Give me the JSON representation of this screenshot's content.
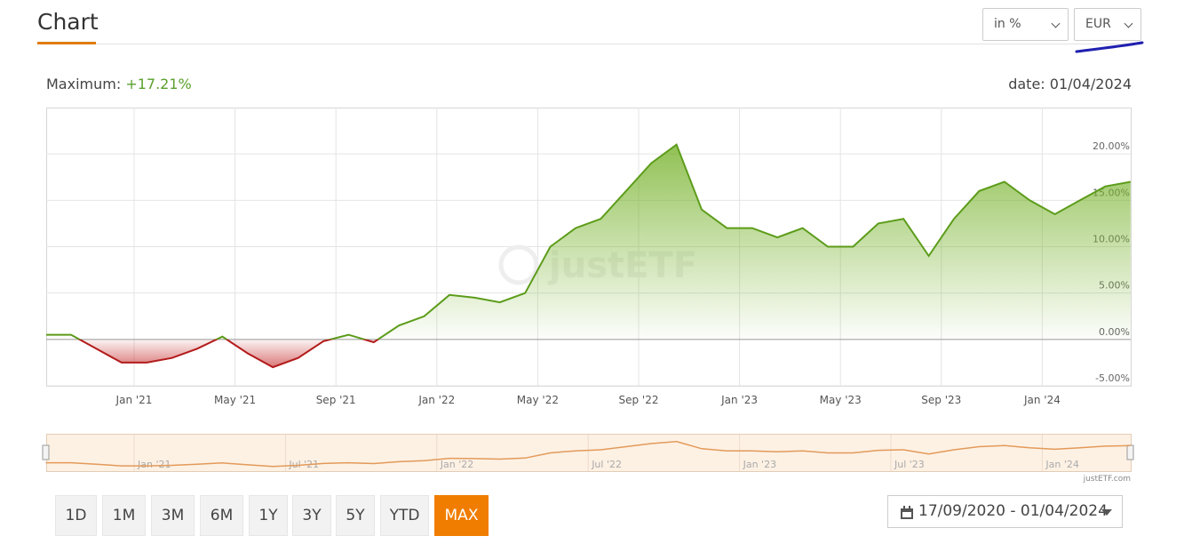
{
  "header": {
    "title": "Chart",
    "unit_select": "in %",
    "currency_select": "EUR"
  },
  "summary": {
    "maximum_label": "Maximum:",
    "maximum_value": "+17.21%",
    "date": "date: 01/04/2024"
  },
  "chart_data": {
    "type": "line",
    "categories": [
      null,
      null,
      null,
      null,
      "Jan '21",
      null,
      null,
      null,
      "May '21",
      null,
      null,
      null,
      "Sep '21",
      null,
      null,
      null,
      "Jan '22",
      null,
      null,
      null,
      "May '22",
      null,
      null,
      null,
      "Sep '22",
      null,
      null,
      null,
      "Jan '23",
      null,
      null,
      null,
      "May '23",
      null,
      null,
      null,
      "Sep '23",
      null,
      null,
      null,
      "Jan '24",
      null,
      null,
      null
    ],
    "values": [
      0.5,
      0.5,
      -1,
      -2.5,
      -2.5,
      -2,
      -1,
      0.3,
      -1.5,
      -3,
      -2,
      -0.2,
      0.5,
      -0.3,
      1.5,
      2.5,
      4.8,
      4.5,
      4,
      5,
      10,
      12,
      13,
      16,
      19,
      21,
      14,
      12,
      12,
      11,
      12,
      10,
      10,
      12.5,
      13,
      9,
      13,
      16,
      17,
      15,
      13.5,
      15,
      16.5,
      17
    ],
    "color": "#5c9c1a",
    "negative_color": "#b31b1b",
    "ylim": [
      -5,
      25
    ],
    "yticks": [
      {
        "value": -5,
        "label": "-5.00%"
      },
      {
        "value": 0,
        "label": "0.00%"
      },
      {
        "value": 5,
        "label": "5.00%"
      },
      {
        "value": 10,
        "label": "10.00%"
      },
      {
        "value": 15,
        "label": "15.00%"
      },
      {
        "value": 20,
        "label": "20.00%"
      }
    ],
    "grid": true,
    "watermark": "justETF"
  },
  "navigator": {
    "categories": [
      null,
      null,
      null,
      null,
      "Jan '21",
      null,
      null,
      null,
      null,
      null,
      "Jul '21",
      null,
      null,
      null,
      null,
      null,
      "Jan '22",
      null,
      null,
      null,
      null,
      null,
      "Jul '22",
      null,
      null,
      null,
      null,
      null,
      "Jan '23",
      null,
      null,
      null,
      null,
      null,
      "Jul '23",
      null,
      null,
      null,
      null,
      null,
      "Jan '24",
      null,
      null,
      null
    ],
    "color": "#e39a5a",
    "credit": "justETF.com"
  },
  "range_buttons": [
    "1D",
    "1M",
    "3M",
    "6M",
    "1Y",
    "3Y",
    "5Y",
    "YTD",
    "MAX"
  ],
  "date_range": "17/09/2020 - 01/04/2024"
}
